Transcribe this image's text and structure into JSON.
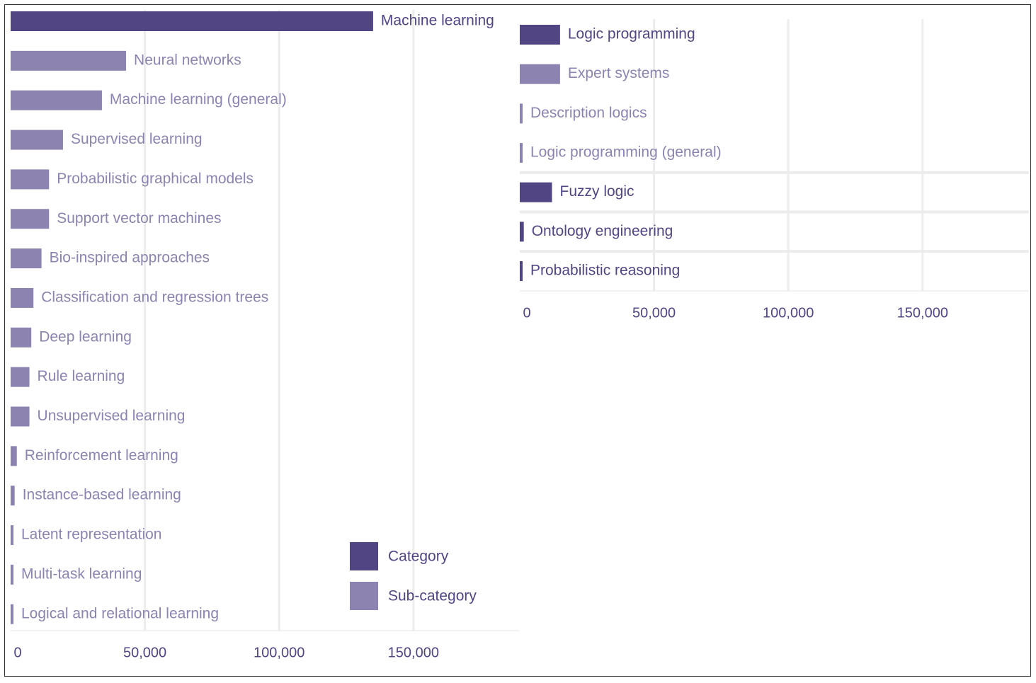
{
  "colors": {
    "category": "#524584",
    "subcategory": "#8c83b0",
    "grid": "#ececec"
  },
  "legend": {
    "category_label": "Category",
    "subcategory_label": "Sub-category"
  },
  "chart_data": [
    {
      "type": "bar",
      "orientation": "horizontal",
      "grid": true,
      "xlim": [
        0,
        190000
      ],
      "x_ticks": [
        "0",
        "50,000",
        "100,000",
        "150,000"
      ],
      "bars": [
        {
          "label": "Machine learning",
          "value": 135000,
          "kind": "category"
        },
        {
          "label": "Neural networks",
          "value": 43000,
          "kind": "subcategory"
        },
        {
          "label": "Machine learning (general)",
          "value": 34000,
          "kind": "subcategory"
        },
        {
          "label": "Supervised learning",
          "value": 19500,
          "kind": "subcategory"
        },
        {
          "label": "Probabilistic graphical models",
          "value": 14300,
          "kind": "subcategory"
        },
        {
          "label": "Support vector machines",
          "value": 14300,
          "kind": "subcategory"
        },
        {
          "label": "Bio-inspired approaches",
          "value": 11500,
          "kind": "subcategory"
        },
        {
          "label": "Classification and regression trees",
          "value": 8500,
          "kind": "subcategory"
        },
        {
          "label": "Deep learning",
          "value": 7700,
          "kind": "subcategory"
        },
        {
          "label": "Rule learning",
          "value": 7000,
          "kind": "subcategory"
        },
        {
          "label": "Unsupervised learning",
          "value": 7000,
          "kind": "subcategory"
        },
        {
          "label": "Reinforcement learning",
          "value": 2300,
          "kind": "subcategory"
        },
        {
          "label": "Instance-based learning",
          "value": 1500,
          "kind": "subcategory"
        },
        {
          "label": "Latent representation",
          "value": 1000,
          "kind": "subcategory"
        },
        {
          "label": "Multi-task learning",
          "value": 1000,
          "kind": "subcategory"
        },
        {
          "label": "Logical and relational learning",
          "value": 1000,
          "kind": "subcategory"
        }
      ]
    },
    {
      "type": "bar",
      "orientation": "horizontal",
      "grid": true,
      "xlim": [
        0,
        190000
      ],
      "x_ticks": [
        "0",
        "50,000",
        "100,000",
        "150,000"
      ],
      "bars": [
        {
          "label": "Logic programming",
          "value": 15000,
          "kind": "category"
        },
        {
          "label": "Expert systems",
          "value": 15000,
          "kind": "subcategory"
        },
        {
          "label": "Description logics",
          "value": 1000,
          "kind": "subcategory"
        },
        {
          "label": "Logic programming (general)",
          "value": 1000,
          "kind": "subcategory"
        },
        {
          "label": "Fuzzy logic",
          "value": 12000,
          "kind": "category"
        },
        {
          "label": "Ontology engineering",
          "value": 1500,
          "kind": "category"
        },
        {
          "label": "Probabilistic reasoning",
          "value": 1000,
          "kind": "category"
        }
      ]
    }
  ]
}
